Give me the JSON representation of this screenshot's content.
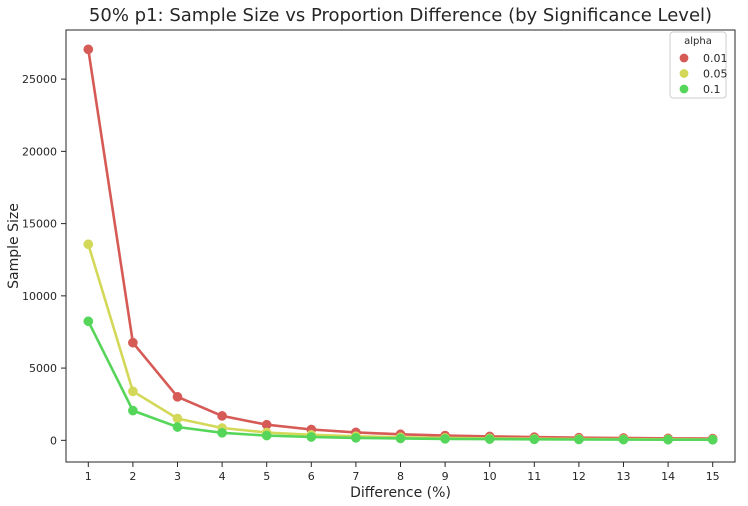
{
  "chart_data": {
    "type": "line",
    "title": "50% p1: Sample Size vs Proportion Difference (by Significance Level)",
    "xlabel": "Difference (%)",
    "ylabel": "Sample Size",
    "categories": [
      "1",
      "2",
      "3",
      "4",
      "5",
      "6",
      "7",
      "8",
      "9",
      "10",
      "11",
      "12",
      "13",
      "14",
      "15"
    ],
    "ylim": [
      -1500,
      28400
    ],
    "yticks": [
      "0",
      "5000",
      "10000",
      "15000",
      "20000",
      "25000"
    ],
    "grid": false,
    "legend": {
      "title": "alpha",
      "placement": "top-right"
    },
    "series": [
      {
        "name": "0.01",
        "color": "#d65a55",
        "values": [
          27060,
          6760,
          3010,
          1690,
          1080,
          750,
          550,
          420,
          330,
          270,
          220,
          185,
          160,
          135,
          120
        ]
      },
      {
        "name": "0.05",
        "color": "#d4d858",
        "values": [
          13570,
          3390,
          1510,
          850,
          540,
          380,
          280,
          210,
          170,
          135,
          110,
          95,
          80,
          70,
          60
        ]
      },
      {
        "name": "0.1",
        "color": "#55d65a",
        "values": [
          8240,
          2060,
          920,
          520,
          330,
          230,
          170,
          130,
          100,
          85,
          70,
          60,
          50,
          45,
          40
        ]
      }
    ]
  }
}
